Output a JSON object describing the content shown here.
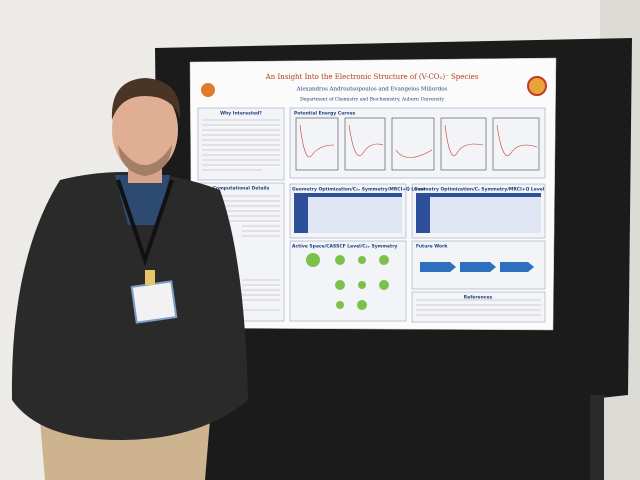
{
  "poster": {
    "title": "An Insight Into the Electronic Structure of (V-CO₂)⁻ Species",
    "authors": "Alexandros Androutsopoulos and Evangelos Miliordos",
    "affiliation": "Department of Chemistry and Biochemistry, Auburn University",
    "sections": [
      "Why Interested?",
      "Computational Details",
      "Potential Energy Curves",
      "Geometry Optimization/C₂ᵥ Symmetry/MRCI+Q Level",
      "Geometry Optimization/Cₛ Symmetry/MRCI+Q Level",
      "Active Space/CASSCF Level/C₂ᵥ Symmetry",
      "Future Work",
      "References"
    ]
  }
}
